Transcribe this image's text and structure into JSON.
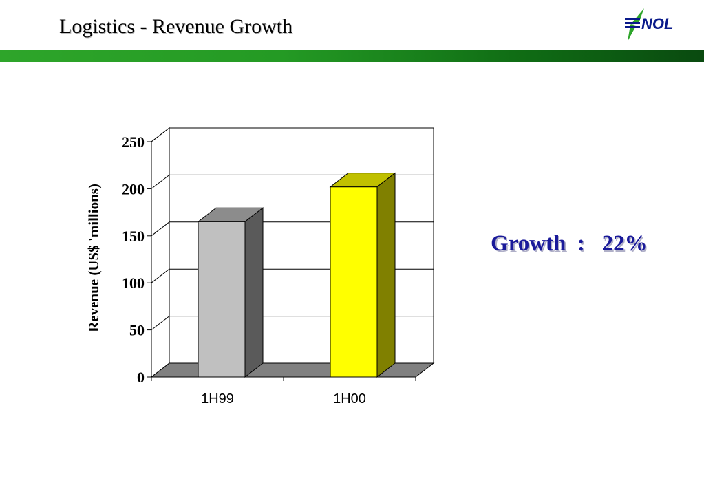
{
  "slide": {
    "title": "Logistics - Revenue Growth",
    "logo_text": "NOL",
    "growth_text": "Growth  :   22%"
  },
  "colors": {
    "title_bar_start": "#2ea52a",
    "title_bar_end": "#0a4a10",
    "growth_text": "#1a1a9a",
    "bar_1h99": "#c0c0c0",
    "bar_1h00": "#ffff00"
  },
  "chart_data": {
    "type": "bar",
    "style": "3d-column",
    "categories": [
      "1H99",
      "1H00"
    ],
    "values": [
      165,
      202
    ],
    "ylabel": "Revenue (US$ 'millions)",
    "xlabel": "",
    "ylim": [
      0,
      250
    ],
    "yticks": [
      0,
      50,
      100,
      150,
      200,
      250
    ],
    "grid": true,
    "legend": "none"
  }
}
